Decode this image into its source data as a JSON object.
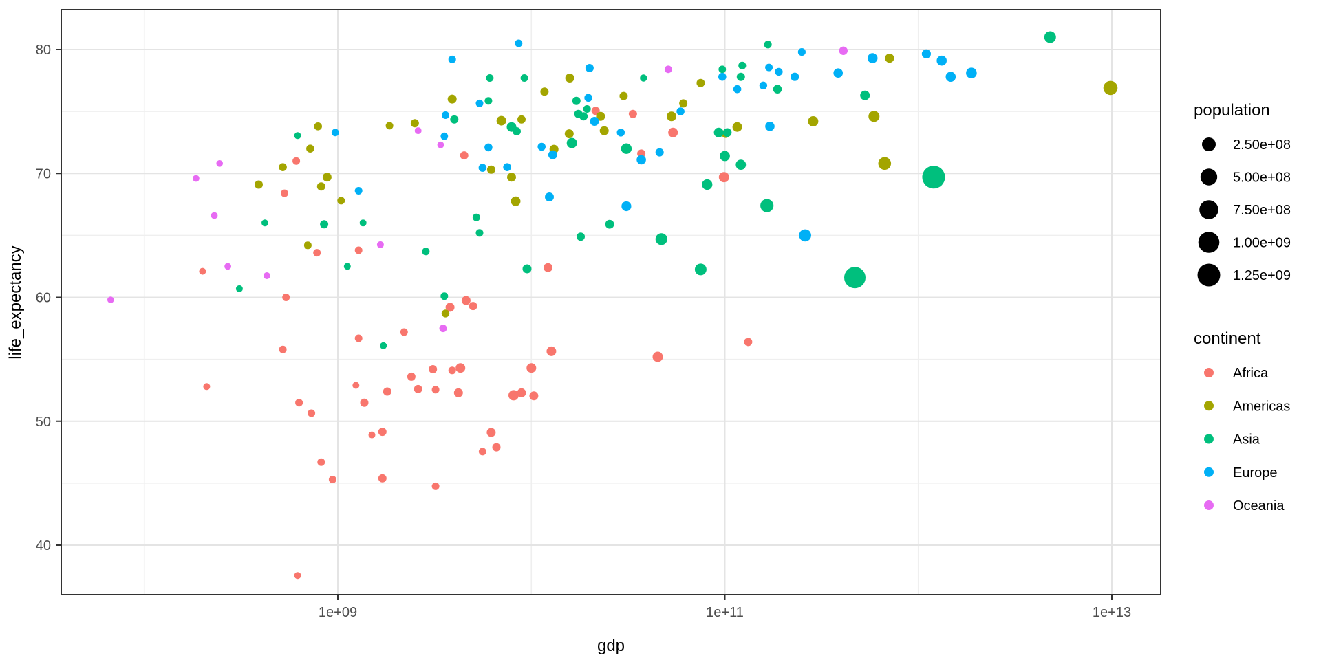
{
  "chart_data": {
    "type": "scatter",
    "xlabel": "gdp",
    "ylabel": "life_expectancy",
    "x_scale": "log10",
    "x_tick_labels": [
      "1e+09",
      "1e+11",
      "1e+13"
    ],
    "x_tick_values": [
      1000000000.0,
      100000000000.0,
      10000000000000.0
    ],
    "x_minor_values": [
      100000000.0,
      10000000000.0,
      1000000000000.0
    ],
    "xlim": [
      37000000.0,
      18000000000000.0
    ],
    "y_tick_labels": [
      "40",
      "50",
      "60",
      "70",
      "80"
    ],
    "y_tick_values": [
      40,
      50,
      60,
      70,
      80
    ],
    "y_minor_values": [
      45,
      55,
      65,
      75
    ],
    "ylim": [
      36.0,
      83.2
    ],
    "grid": true,
    "legend_position": "right",
    "colors": {
      "Africa": "#F8766D",
      "Americas": "#A3A500",
      "Asia": "#00BF7D",
      "Europe": "#00B0F6",
      "Oceania": "#E76BF3"
    },
    "legend_population": {
      "title": "population",
      "items": [
        {
          "label": "2.50e+08",
          "value": 250000000
        },
        {
          "label": "5.00e+08",
          "value": 500000000
        },
        {
          "label": "7.50e+08",
          "value": 750000000
        },
        {
          "label": "1.00e+09",
          "value": 1000000000
        },
        {
          "label": "1.25e+09",
          "value": 1250000000
        }
      ]
    },
    "legend_continent": {
      "title": "continent",
      "items": [
        {
          "label": "Africa",
          "color": "#F8766D"
        },
        {
          "label": "Americas",
          "color": "#A3A500"
        },
        {
          "label": "Asia",
          "color": "#00BF7D"
        },
        {
          "label": "Europe",
          "color": "#00B0F6"
        },
        {
          "label": "Oceania",
          "color": "#E76BF3"
        }
      ]
    },
    "series": [
      {
        "name": "Africa",
        "color": "#F8766D",
        "points": [
          [
            610000000.0,
            71.0,
            5000000.0
          ],
          [
            530000000.0,
            68.4,
            5000000.0
          ],
          [
            200000000.0,
            62.1,
            600000.0
          ],
          [
            540000000.0,
            60.0,
            5000000.0
          ],
          [
            520000000.0,
            55.8,
            5000000.0
          ],
          [
            210000000.0,
            52.8,
            600000.0
          ],
          [
            630000000.0,
            51.5,
            5000000.0
          ],
          [
            730000000.0,
            50.65,
            5000000.0
          ],
          [
            820000000.0,
            46.7,
            5000000.0
          ],
          [
            940000000.0,
            45.3,
            5000000.0
          ],
          [
            620000000.0,
            37.55,
            600000.0
          ],
          [
            780000000.0,
            63.6,
            5000000.0
          ],
          [
            1280000000.0,
            63.8,
            5000000.0
          ],
          [
            12200000000.0,
            62.4,
            28000000.0
          ],
          [
            4500000000.0,
            71.45,
            14000000.0
          ],
          [
            21500000000.0,
            75.05,
            14000000.0
          ],
          [
            45000000000.0,
            55.2,
            69000000.0
          ],
          [
            132000000000.0,
            56.4,
            14000000.0
          ],
          [
            33500000000.0,
            74.8,
            14000000.0
          ],
          [
            54000000000.0,
            73.3,
            46000000.0
          ],
          [
            37000000000.0,
            71.6,
            14000000.0
          ],
          [
            99000000000.0,
            69.7,
            69000000.0
          ],
          [
            3800000000.0,
            59.2,
            28000000.0
          ],
          [
            4600000000.0,
            59.75,
            28000000.0
          ],
          [
            5000000000.0,
            59.3,
            14000000.0
          ],
          [
            2200000000.0,
            57.2,
            5000000.0
          ],
          [
            1280000000.0,
            56.7,
            5000000.0
          ],
          [
            12700000000.0,
            55.65,
            46000000.0
          ],
          [
            10000000000.0,
            54.3,
            46000000.0
          ],
          [
            3100000000.0,
            54.2,
            14000000.0
          ],
          [
            4300000000.0,
            54.3,
            46000000.0
          ],
          [
            3900000000.0,
            54.1,
            5000000.0
          ],
          [
            2400000000.0,
            53.6,
            14000000.0
          ],
          [
            1240000000.0,
            52.9,
            600000.0
          ],
          [
            1800000000.0,
            52.4,
            14000000.0
          ],
          [
            2600000000.0,
            52.6,
            14000000.0
          ],
          [
            3200000000.0,
            52.55,
            5000000.0
          ],
          [
            4200000000.0,
            52.3,
            28000000.0
          ],
          [
            1370000000.0,
            51.5,
            14000000.0
          ],
          [
            8100000000.0,
            52.1,
            69000000.0
          ],
          [
            8900000000.0,
            52.3,
            28000000.0
          ],
          [
            10300000000.0,
            52.05,
            28000000.0
          ],
          [
            1500000000.0,
            48.9,
            600000.0
          ],
          [
            1700000000.0,
            49.15,
            14000000.0
          ],
          [
            6200000000.0,
            49.1,
            28000000.0
          ],
          [
            5600000000.0,
            47.55,
            5000000.0
          ],
          [
            6600000000.0,
            47.9,
            14000000.0
          ],
          [
            1700000000.0,
            45.4,
            14000000.0
          ],
          [
            3200000000.0,
            44.75,
            5000000.0
          ]
        ]
      },
      {
        "name": "Americas",
        "color": "#A3A500",
        "points": [
          [
            790000000.0,
            73.8,
            10000000.0
          ],
          [
            720000000.0,
            72.0,
            10000000.0
          ],
          [
            520000000.0,
            70.5,
            10000000.0
          ],
          [
            880000000.0,
            69.7,
            28000000.0
          ],
          [
            820000000.0,
            68.95,
            14000000.0
          ],
          [
            390000000.0,
            69.1,
            14000000.0
          ],
          [
            700000000.0,
            64.2,
            5000000.0
          ],
          [
            1850000000.0,
            73.85,
            5000000.0
          ],
          [
            2500000000.0,
            74.05,
            14000000.0
          ],
          [
            3900000000.0,
            76.0,
            28000000.0
          ],
          [
            15800000000.0,
            77.7,
            28000000.0
          ],
          [
            11700000000.0,
            76.6,
            14000000.0
          ],
          [
            7000000000.0,
            74.25,
            46000000.0
          ],
          [
            8900000000.0,
            74.35,
            14000000.0
          ],
          [
            22800000000.0,
            74.6,
            28000000.0
          ],
          [
            23800000000.0,
            73.45,
            28000000.0
          ],
          [
            13100000000.0,
            71.95,
            28000000.0
          ],
          [
            6200000000.0,
            70.3,
            14000000.0
          ],
          [
            7900000000.0,
            69.7,
            28000000.0
          ],
          [
            1040000000.0,
            67.8,
            5000000.0
          ],
          [
            8300000000.0,
            67.75,
            46000000.0
          ],
          [
            3600000000.0,
            58.7,
            8000000.0
          ],
          [
            75000000000.0,
            77.3,
            15000000.0
          ],
          [
            30000000000.0,
            76.25,
            14000000.0
          ],
          [
            61000000000.0,
            75.65,
            14000000.0
          ],
          [
            53000000000.0,
            74.6,
            46000000.0
          ],
          [
            590000000000.0,
            74.6,
            98000000.0
          ],
          [
            670000000000.0,
            70.8,
            185000000.0
          ],
          [
            116000000000.0,
            73.75,
            46000000.0
          ],
          [
            286000000000.0,
            74.2,
            69000000.0
          ],
          [
            101000000000.0,
            73.2,
            14000000.0
          ],
          [
            9840000000000.0,
            76.9,
            282000000.0
          ],
          [
            710000000000.0,
            79.3,
            31000000.0
          ],
          [
            15700000000.0,
            73.2,
            28000000.0
          ]
        ]
      },
      {
        "name": "Asia",
        "color": "#00BF7D",
        "points": [
          [
            620000000.0,
            73.05,
            600000.0
          ],
          [
            420000000.0,
            66.0,
            600000.0
          ],
          [
            850000000.0,
            65.9,
            14000000.0
          ],
          [
            310000000.0,
            60.7,
            600000.0
          ],
          [
            6100000000.0,
            77.7,
            5000000.0
          ],
          [
            9200000000.0,
            77.7,
            5000000.0
          ],
          [
            6000000000.0,
            75.85,
            5000000.0
          ],
          [
            17100000000.0,
            75.85,
            14000000.0
          ],
          [
            19400000000.0,
            75.2,
            5000000.0
          ],
          [
            17500000000.0,
            74.8,
            14000000.0
          ],
          [
            18600000000.0,
            74.6,
            14000000.0
          ],
          [
            4000000000.0,
            74.35,
            14000000.0
          ],
          [
            7900000000.0,
            73.75,
            46000000.0
          ],
          [
            8400000000.0,
            73.4,
            14000000.0
          ],
          [
            16200000000.0,
            72.45,
            69000000.0
          ],
          [
            5200000000.0,
            66.45,
            5000000.0
          ],
          [
            5400000000.0,
            65.2,
            5000000.0
          ],
          [
            1350000000.0,
            66.0,
            600000.0
          ],
          [
            25400000000.0,
            65.9,
            24000000.0
          ],
          [
            18000000000.0,
            64.9,
            14000000.0
          ],
          [
            2850000000.0,
            63.7,
            5000000.0
          ],
          [
            1120000000.0,
            62.5,
            600000.0
          ],
          [
            9500000000.0,
            62.3,
            28000000.0
          ],
          [
            3550000000.0,
            60.1,
            5000000.0
          ],
          [
            1720000000.0,
            56.1,
            600000.0
          ],
          [
            31000000000.0,
            72.0,
            79000000.0
          ],
          [
            47000000000.0,
            64.7,
            138000000.0
          ],
          [
            165000000000.0,
            67.4,
            210000000.0
          ],
          [
            81000000000.0,
            69.1,
            76000000.0
          ],
          [
            100000000000.0,
            71.4,
            63000000.0
          ],
          [
            121000000000.0,
            70.7,
            66000000.0
          ],
          [
            75000000000.0,
            62.25,
            130000000.0
          ],
          [
            470000000000.0,
            61.6,
            1040000000.0
          ],
          [
            1200000000000.0,
            69.7,
            1270000000.0
          ],
          [
            4800000000000.0,
            81.0,
            127000000.0
          ],
          [
            167000000000.0,
            80.4,
            7000000.0
          ],
          [
            97000000000.0,
            78.4,
            4000000.0
          ],
          [
            123000000000.0,
            78.7,
            6000000.0
          ],
          [
            121000000000.0,
            77.8,
            14000000.0
          ],
          [
            187000000000.0,
            76.8,
            22000000.0
          ],
          [
            530000000000.0,
            76.3,
            47000000.0
          ],
          [
            38000000000.0,
            77.7,
            2000000.0
          ],
          [
            93000000000.0,
            73.3,
            46000000.0
          ],
          [
            103000000000.0,
            73.3,
            21000000.0
          ]
        ]
      },
      {
        "name": "Europe",
        "color": "#00B0F6",
        "points": [
          [
            970000000.0,
            73.3,
            4000000.0
          ],
          [
            8600000000.0,
            80.5,
            5000000.0
          ],
          [
            3900000000.0,
            79.2,
            5000000.0
          ],
          [
            20000000000.0,
            78.5,
            14000000.0
          ],
          [
            5400000000.0,
            75.65,
            5000000.0
          ],
          [
            19700000000.0,
            76.1,
            10000000.0
          ],
          [
            3600000000.0,
            74.7,
            5000000.0
          ],
          [
            3550000000.0,
            73.0,
            4000000.0
          ],
          [
            6000000000.0,
            72.1,
            10000000.0
          ],
          [
            11300000000.0,
            72.15,
            10000000.0
          ],
          [
            12900000000.0,
            71.5,
            28000000.0
          ],
          [
            5600000000.0,
            70.45,
            10000000.0
          ],
          [
            7500000000.0,
            70.5,
            10000000.0
          ],
          [
            1280000000.0,
            68.6,
            5000000.0
          ],
          [
            12400000000.0,
            68.1,
            28000000.0
          ],
          [
            31000000000.0,
            67.35,
            50000000.0
          ],
          [
            37000000000.0,
            71.1,
            40000000.0
          ],
          [
            46000000000.0,
            71.7,
            14000000.0
          ],
          [
            59000000000.0,
            75.0,
            10000000.0
          ],
          [
            97000000000.0,
            77.8,
            10000000.0
          ],
          [
            116000000000.0,
            76.8,
            10000000.0
          ],
          [
            158000000000.0,
            77.1,
            8000000.0
          ],
          [
            169000000000.0,
            78.55,
            5000000.0
          ],
          [
            190000000000.0,
            78.2,
            9000000.0
          ],
          [
            230000000000.0,
            77.8,
            16000000.0
          ],
          [
            250000000000.0,
            79.8,
            7000000.0
          ],
          [
            385000000000.0,
            78.1,
            40000000.0
          ],
          [
            580000000000.0,
            79.3,
            57000000.0
          ],
          [
            171000000000.0,
            73.8,
            39000000.0
          ],
          [
            260000000000.0,
            65.0,
            147000000.0
          ],
          [
            1100000000000.0,
            79.65,
            30000000.0
          ],
          [
            1320000000000.0,
            79.1,
            59000000.0
          ],
          [
            1470000000000.0,
            77.8,
            59000000.0
          ],
          [
            1880000000000.0,
            78.1,
            82000000.0
          ],
          [
            29000000000.0,
            73.3,
            10000000.0
          ],
          [
            21200000000.0,
            74.2,
            28000000.0
          ]
        ]
      },
      {
        "name": "Oceania",
        "color": "#E76BF3",
        "points": [
          [
            245000000.0,
            70.8,
            100000.0
          ],
          [
            185000000.0,
            69.6,
            200000.0
          ],
          [
            230000000.0,
            66.6,
            200000.0
          ],
          [
            270000000.0,
            62.5,
            200000.0
          ],
          [
            430000000.0,
            61.75,
            800000.0
          ],
          [
            67000000.0,
            59.8,
            100000.0
          ],
          [
            2600000000.0,
            73.45,
            800000.0
          ],
          [
            3400000000.0,
            72.3,
            200000.0
          ],
          [
            1660000000.0,
            64.25,
            800000.0
          ],
          [
            3500000000.0,
            57.5,
            5000000.0
          ],
          [
            51000000000.0,
            78.4,
            3900000.0
          ],
          [
            410000000000.0,
            79.9,
            19000000.0
          ]
        ]
      }
    ]
  }
}
